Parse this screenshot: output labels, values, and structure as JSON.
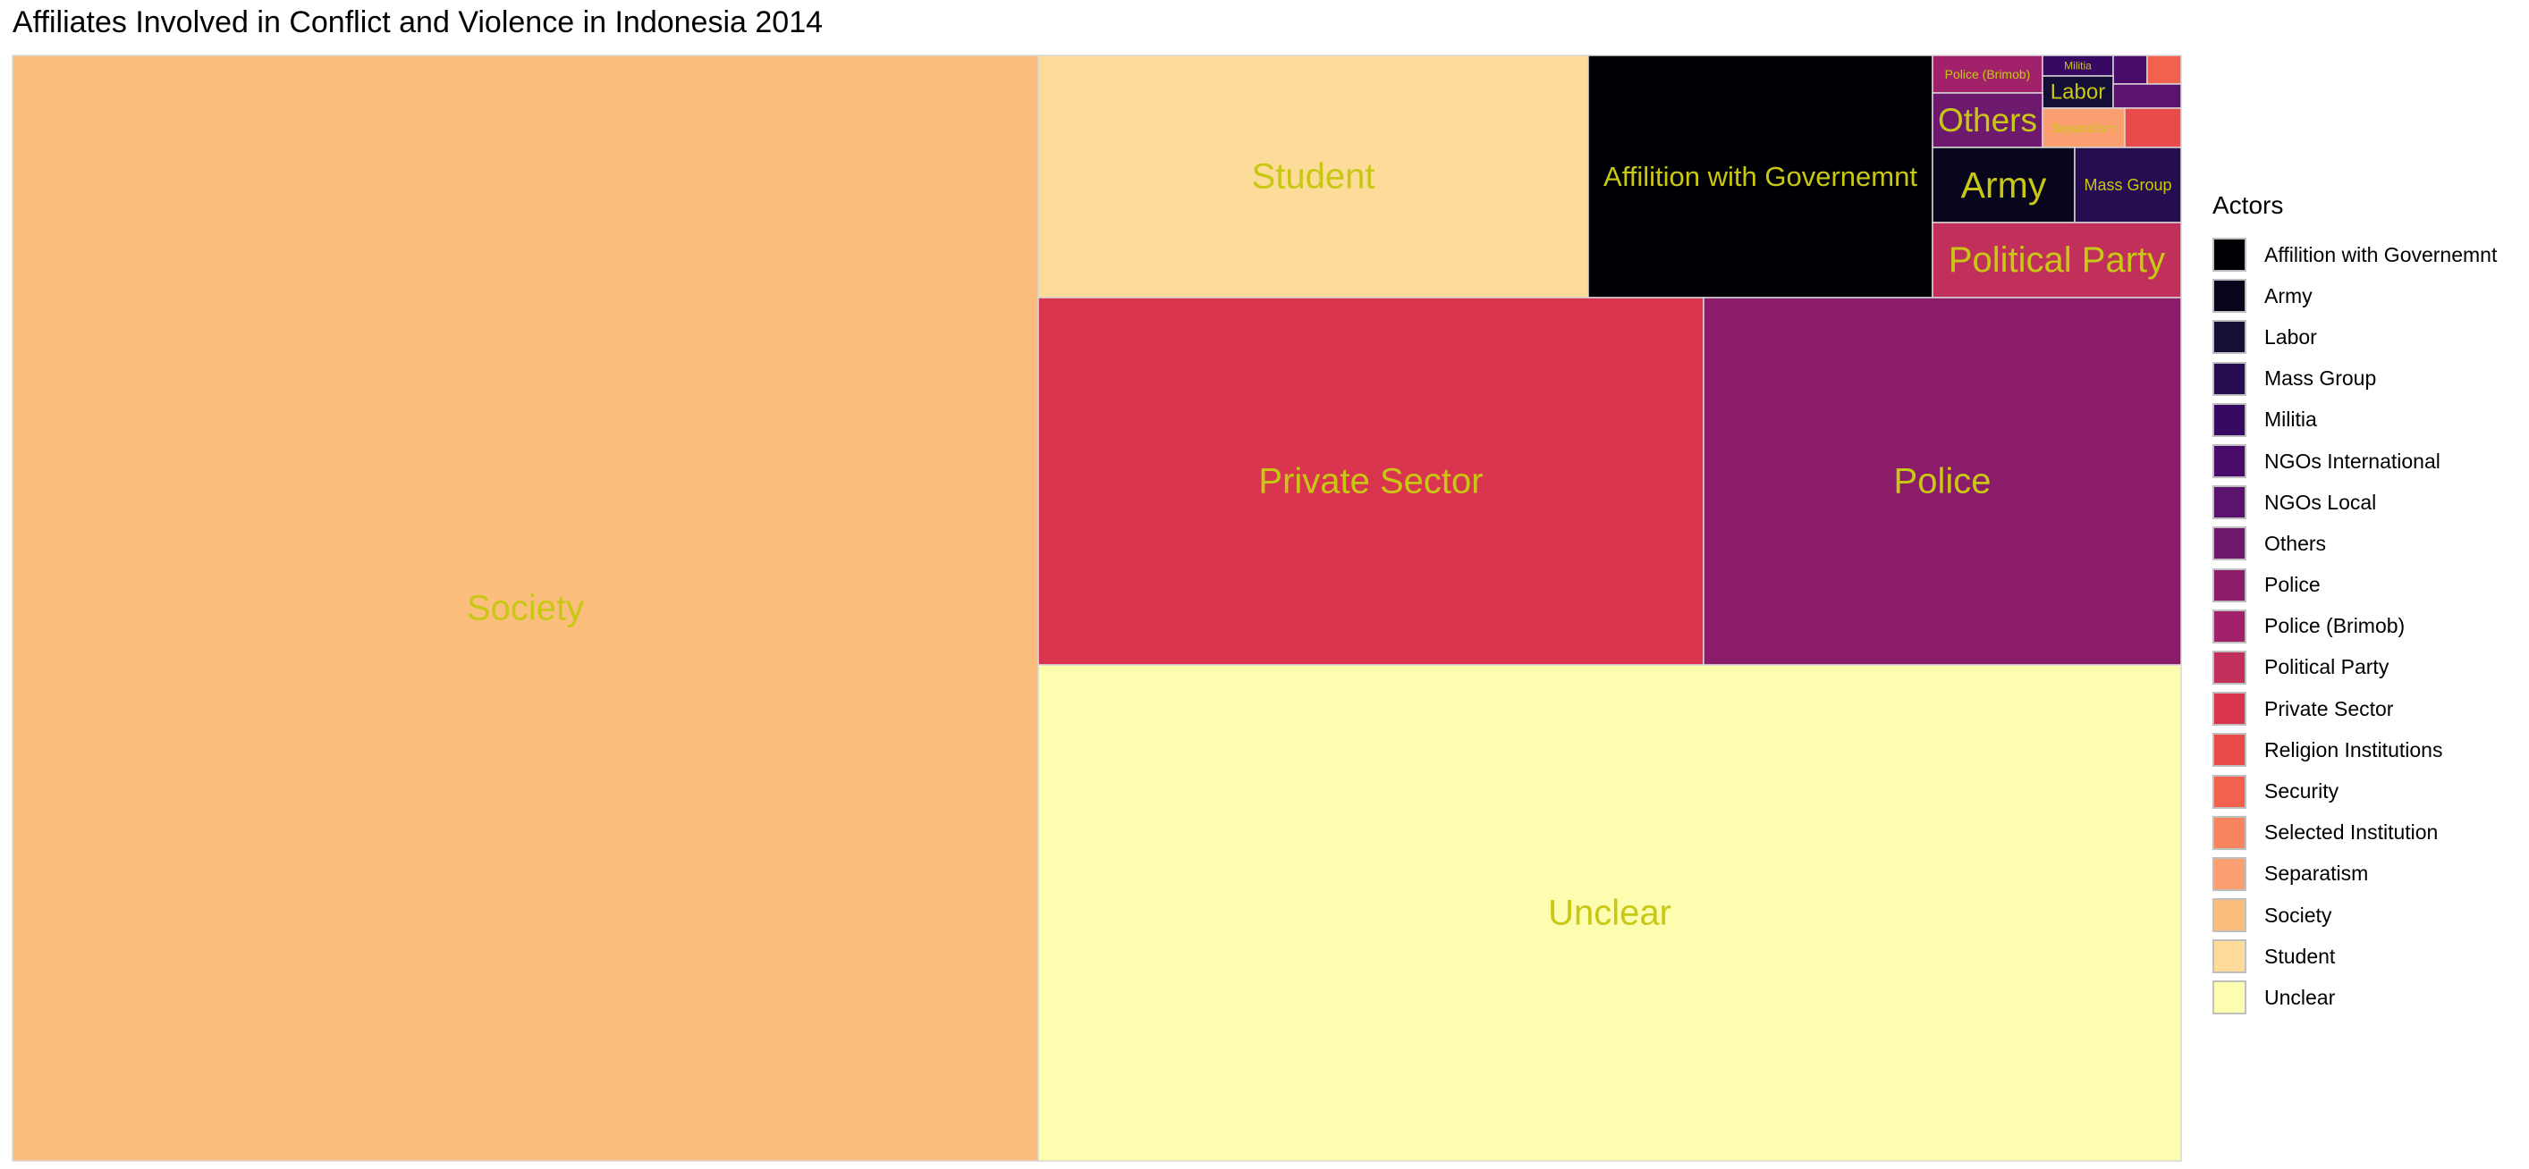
{
  "chart_data": {
    "type": "treemap",
    "title": "Affiliates Involved in Conflict and Violence in Indonesia 2014",
    "legend_title": "Actors",
    "legend_position": "right",
    "label_color": "#c8c814",
    "categories": [
      {
        "name": "Affilition with Governemnt",
        "value": 0.0574,
        "color": "#000004"
      },
      {
        "name": "Army",
        "value": 0.013,
        "color": "#07061c"
      },
      {
        "name": "Labor",
        "value": 0.0026,
        "color": "#150e37"
      },
      {
        "name": "Mass Group",
        "value": 0.009,
        "color": "#260c51"
      },
      {
        "name": "Militia",
        "value": 0.0017,
        "color": "#380962"
      },
      {
        "name": "NGOs International",
        "value": 0.0004,
        "color": "#4a0c6b"
      },
      {
        "name": "NGOs Local",
        "value": 0.0013,
        "color": "#5c136e"
      },
      {
        "name": "Others",
        "value": 0.0082,
        "color": "#6d1a6e"
      },
      {
        "name": "Police",
        "value": 0.0972,
        "color": "#8a1c6a"
      },
      {
        "name": "Police (Brimob)",
        "value": 0.0036,
        "color": "#a1226a"
      },
      {
        "name": "Political Party",
        "value": 0.012,
        "color": "#c0305b"
      },
      {
        "name": "Private Sector",
        "value": 0.135,
        "color": "#d9354f"
      },
      {
        "name": "Religion Institutions",
        "value": 0.0026,
        "color": "#e94a4a"
      },
      {
        "name": "Security",
        "value": 0.001,
        "color": "#f2604e"
      },
      {
        "name": "Selected Institution",
        "value": 0.001,
        "color": "#f8845e"
      },
      {
        "name": "Separatism",
        "value": 0.002,
        "color": "#fb9e70"
      },
      {
        "name": "Society",
        "value": 0.4725,
        "color": "#fbbe7c"
      },
      {
        "name": "Student",
        "value": 0.056,
        "color": "#fcdc98"
      },
      {
        "name": "Unclear",
        "value": 0.2286,
        "color": "#fcfdae"
      }
    ]
  }
}
